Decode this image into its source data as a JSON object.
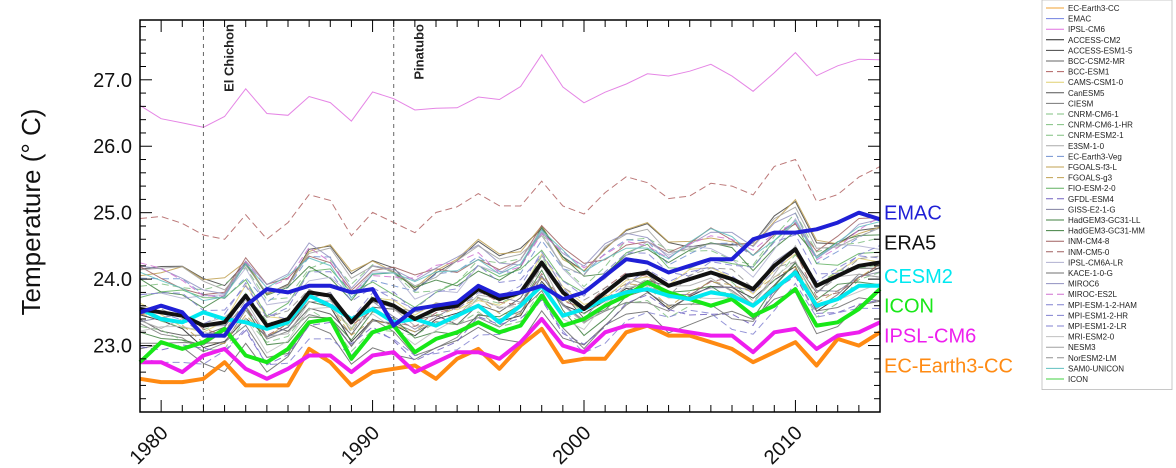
{
  "chart_data": {
    "type": "line",
    "title": "",
    "xlabel": "",
    "ylabel": "Temperature (° C)",
    "xlim": [
      1979,
      2014
    ],
    "ylim": [
      22.0,
      27.9
    ],
    "x_ticks": [
      1980,
      1990,
      2000,
      2010
    ],
    "y_ticks": [
      23.0,
      24.0,
      25.0,
      26.0,
      27.0
    ],
    "y_tick_labels": [
      "23.0",
      "24.0",
      "25.0",
      "26.0",
      "27.0"
    ],
    "grid": false,
    "events": [
      {
        "label": "El Chichon",
        "x": 1982
      },
      {
        "label": "Pinatubo",
        "x": 1991
      }
    ],
    "x": [
      1979,
      1980,
      1981,
      1982,
      1983,
      1984,
      1985,
      1986,
      1987,
      1988,
      1989,
      1990,
      1991,
      1992,
      1993,
      1994,
      1995,
      1996,
      1997,
      1998,
      1999,
      2000,
      2001,
      2002,
      2003,
      2004,
      2005,
      2006,
      2007,
      2008,
      2009,
      2010,
      2011,
      2012,
      2013,
      2014
    ],
    "highlighted_series": [
      {
        "name": "EMAC",
        "color": "#1f1fd6",
        "values": [
          23.5,
          23.6,
          23.5,
          23.15,
          23.15,
          23.6,
          23.85,
          23.8,
          23.9,
          23.9,
          23.8,
          23.85,
          23.3,
          23.55,
          23.6,
          23.65,
          23.9,
          23.75,
          23.8,
          23.9,
          23.7,
          23.8,
          24.05,
          24.3,
          24.25,
          24.1,
          24.2,
          24.3,
          24.3,
          24.6,
          24.7,
          24.7,
          24.75,
          24.85,
          25.0,
          24.9
        ]
      },
      {
        "name": "ERA5",
        "color": "#111111",
        "values": [
          23.55,
          23.5,
          23.45,
          23.3,
          23.35,
          23.75,
          23.3,
          23.4,
          23.8,
          23.75,
          23.35,
          23.7,
          23.6,
          23.4,
          23.55,
          23.6,
          23.85,
          23.7,
          23.8,
          24.25,
          23.8,
          23.55,
          23.8,
          24.05,
          24.1,
          23.9,
          24.0,
          24.1,
          24.0,
          23.85,
          24.2,
          24.45,
          23.9,
          24.05,
          24.2,
          24.25
        ]
      },
      {
        "name": "CESM2",
        "color": "#00e8f0",
        "values": [
          23.55,
          23.4,
          23.35,
          23.5,
          23.4,
          23.35,
          23.25,
          23.35,
          23.75,
          23.6,
          23.4,
          23.55,
          23.35,
          23.4,
          23.3,
          23.45,
          23.6,
          23.35,
          23.6,
          23.9,
          23.45,
          23.55,
          23.7,
          23.8,
          23.85,
          23.75,
          23.7,
          23.8,
          23.75,
          23.6,
          23.85,
          24.1,
          23.6,
          23.7,
          23.9,
          23.9
        ]
      },
      {
        "name": "ICON",
        "color": "#18e818",
        "values": [
          22.75,
          23.05,
          22.95,
          23.05,
          23.25,
          22.85,
          22.75,
          22.95,
          23.35,
          23.4,
          22.8,
          23.2,
          23.3,
          22.9,
          23.1,
          23.2,
          23.35,
          23.2,
          23.3,
          23.75,
          23.3,
          23.4,
          23.6,
          23.75,
          23.95,
          23.8,
          23.7,
          23.6,
          23.7,
          23.45,
          23.6,
          23.85,
          23.3,
          23.35,
          23.55,
          23.85
        ]
      },
      {
        "name": "IPSL-CM6",
        "color": "#ee1eee",
        "values": [
          22.75,
          22.75,
          22.6,
          22.85,
          22.95,
          22.65,
          22.5,
          22.65,
          22.85,
          22.85,
          22.6,
          22.85,
          22.9,
          22.6,
          22.75,
          22.9,
          22.9,
          22.8,
          23.05,
          23.4,
          23.0,
          22.9,
          23.2,
          23.3,
          23.3,
          23.25,
          23.2,
          23.15,
          23.15,
          22.9,
          23.2,
          23.25,
          22.95,
          23.15,
          23.2,
          23.35
        ]
      },
      {
        "name": "EC-Earth3-CC",
        "color": "#ff8a12",
        "values": [
          22.5,
          22.45,
          22.45,
          22.5,
          22.75,
          22.4,
          22.4,
          22.4,
          22.95,
          22.75,
          22.4,
          22.6,
          22.65,
          22.7,
          22.5,
          22.8,
          22.95,
          22.65,
          23.0,
          23.25,
          22.75,
          22.8,
          22.8,
          23.2,
          23.3,
          23.15,
          23.15,
          23.05,
          22.95,
          22.75,
          22.9,
          23.05,
          22.7,
          23.1,
          23.0,
          23.2
        ]
      }
    ],
    "legend": {
      "placement": "right",
      "entries": [
        {
          "name": "EC-Earth3-CC",
          "color": "#f0a030",
          "dash": "solid"
        },
        {
          "name": "EMAC",
          "color": "#7080e0",
          "dash": "solid"
        },
        {
          "name": "IPSL-CM6",
          "color": "#e070e0",
          "dash": "solid"
        },
        {
          "name": "ACCESS-CM2",
          "color": "#222222",
          "dash": "solid"
        },
        {
          "name": "ACCESS-ESM1-5",
          "color": "#444444",
          "dash": "solid"
        },
        {
          "name": "BCC-CSM2-MR",
          "color": "#666666",
          "dash": "solid"
        },
        {
          "name": "BCC-ESM1",
          "color": "#b06060",
          "dash": "dash"
        },
        {
          "name": "CAMS-CSM1-0",
          "color": "#e0d070",
          "dash": "solid"
        },
        {
          "name": "CanESM5",
          "color": "#555555",
          "dash": "solid"
        },
        {
          "name": "CIESM",
          "color": "#777777",
          "dash": "solid"
        },
        {
          "name": "CNRM-CM6-1",
          "color": "#80c080",
          "dash": "dash"
        },
        {
          "name": "CNRM-CM6-1-HR",
          "color": "#80c080",
          "dash": "dash"
        },
        {
          "name": "CNRM-ESM2-1",
          "color": "#80c080",
          "dash": "dash"
        },
        {
          "name": "E3SM-1-0",
          "color": "#aaaaaa",
          "dash": "solid"
        },
        {
          "name": "EC-Earth3-Veg",
          "color": "#7090d0",
          "dash": "dash"
        },
        {
          "name": "FGOALS-f3-L",
          "color": "#c0a050",
          "dash": "solid"
        },
        {
          "name": "FGOALS-g3",
          "color": "#c0a050",
          "dash": "dash"
        },
        {
          "name": "FIO-ESM-2-0",
          "color": "#60b060",
          "dash": "solid"
        },
        {
          "name": "GFDL-ESM4",
          "color": "#7060c0",
          "dash": "dash"
        },
        {
          "name": "GISS-E2-1-G",
          "color": "#8080a0",
          "dash": "solid"
        },
        {
          "name": "HadGEM3-GC31-LL",
          "color": "#408040",
          "dash": "solid"
        },
        {
          "name": "HadGEM3-GC31-MM",
          "color": "#408040",
          "dash": "solid"
        },
        {
          "name": "INM-CM4-8",
          "color": "#a06060",
          "dash": "solid"
        },
        {
          "name": "INM-CM5-0",
          "color": "#a06060",
          "dash": "dash"
        },
        {
          "name": "IPSL-CM6A-LR",
          "color": "#b0b0d0",
          "dash": "solid"
        },
        {
          "name": "KACE-1-0-G",
          "color": "#707070",
          "dash": "solid"
        },
        {
          "name": "MIROC6",
          "color": "#9090c0",
          "dash": "solid"
        },
        {
          "name": "MIROC-ES2L",
          "color": "#d070d0",
          "dash": "dash"
        },
        {
          "name": "MPI-ESM-1-2-HAM",
          "color": "#8080d0",
          "dash": "dash"
        },
        {
          "name": "MPI-ESM1-2-HR",
          "color": "#8080d0",
          "dash": "dash"
        },
        {
          "name": "MPI-ESM1-2-LR",
          "color": "#8080d0",
          "dash": "dash"
        },
        {
          "name": "MRI-ESM2-0",
          "color": "#c0c0c0",
          "dash": "solid"
        },
        {
          "name": "NESM3",
          "color": "#a0a0a0",
          "dash": "solid"
        },
        {
          "name": "NorESM2-LM",
          "color": "#909090",
          "dash": "dash"
        },
        {
          "name": "SAM0-UNICON",
          "color": "#60c0c0",
          "dash": "solid"
        },
        {
          "name": "ICON",
          "color": "#40d040",
          "dash": "solid"
        }
      ]
    }
  }
}
